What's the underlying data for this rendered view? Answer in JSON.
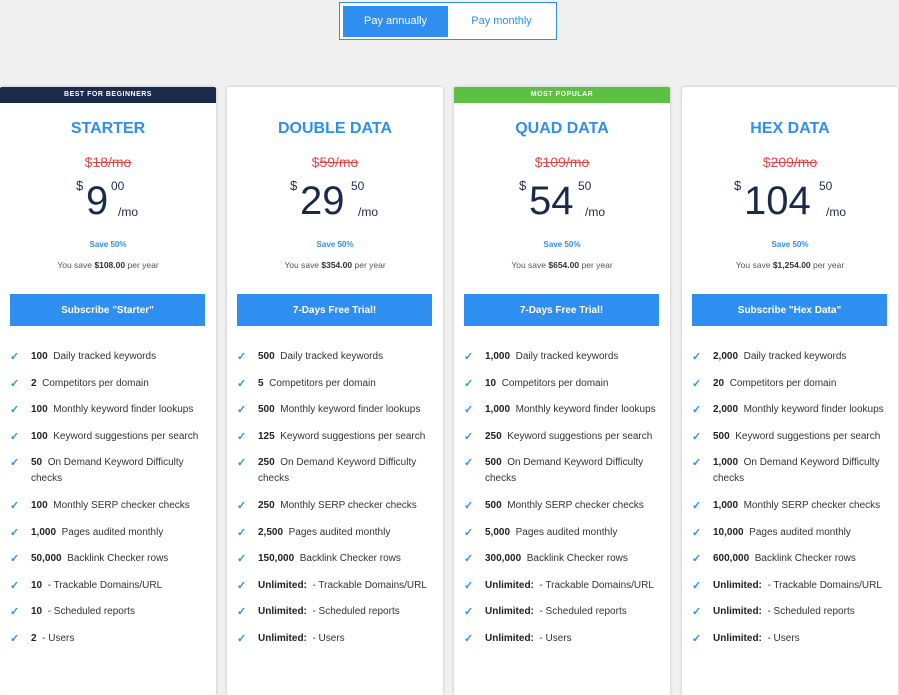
{
  "toggle": {
    "annual": "Pay annually",
    "monthly": "Pay monthly"
  },
  "plans": [
    {
      "banner": "BEST FOR BEGINNERS",
      "title": "STARTER",
      "old_price": "18/mo",
      "currency": "$",
      "price_int": "9",
      "price_cents": "00",
      "per": "/mo",
      "save_pct": "Save 50%",
      "save_label": "You save",
      "save_amount": "$108.00",
      "save_suffix": "per year",
      "cta": "Subscribe \"Starter\"",
      "features": [
        {
          "value": "100",
          "label": "Daily tracked keywords"
        },
        {
          "value": "2",
          "label": "Competitors per domain"
        },
        {
          "value": "100",
          "label": "Monthly keyword finder lookups"
        },
        {
          "value": "100",
          "label": "Keyword suggestions per search"
        },
        {
          "value": "50",
          "label": "On Demand Keyword Difficulty checks"
        },
        {
          "value": "100",
          "label": "Monthly SERP checker checks"
        },
        {
          "value": "1,000",
          "label": "Pages audited monthly"
        },
        {
          "value": "50,000",
          "label": "Backlink Checker rows"
        },
        {
          "value": "10",
          "label": "- Trackable Domains/URL"
        },
        {
          "value": "10",
          "label": "- Scheduled reports"
        },
        {
          "value": "2",
          "label": "- Users"
        }
      ]
    },
    {
      "banner": "",
      "title": "DOUBLE DATA",
      "old_price": "59/mo",
      "currency": "$",
      "price_int": "29",
      "price_cents": "50",
      "per": "/mo",
      "save_pct": "Save 50%",
      "save_label": "You save",
      "save_amount": "$354.00",
      "save_suffix": "per year",
      "cta": "7-Days Free Trial!",
      "features": [
        {
          "value": "500",
          "label": "Daily tracked keywords"
        },
        {
          "value": "5",
          "label": "Competitors per domain"
        },
        {
          "value": "500",
          "label": "Monthly keyword finder lookups"
        },
        {
          "value": "125",
          "label": "Keyword suggestions per search"
        },
        {
          "value": "250",
          "label": "On Demand Keyword Difficulty checks"
        },
        {
          "value": "250",
          "label": "Monthly SERP checker checks"
        },
        {
          "value": "2,500",
          "label": "Pages audited monthly"
        },
        {
          "value": "150,000",
          "label": "Backlink Checker rows"
        },
        {
          "value": "Unlimited:",
          "label": "- Trackable Domains/URL"
        },
        {
          "value": "Unlimited:",
          "label": "- Scheduled reports"
        },
        {
          "value": "Unlimited:",
          "label": "- Users"
        }
      ]
    },
    {
      "banner": "MOST POPULAR",
      "title": "QUAD DATA",
      "old_price": "109/mo",
      "currency": "$",
      "price_int": "54",
      "price_cents": "50",
      "per": "/mo",
      "save_pct": "Save 50%",
      "save_label": "You save",
      "save_amount": "$654.00",
      "save_suffix": "per year",
      "cta": "7-Days Free Trial!",
      "features": [
        {
          "value": "1,000",
          "label": "Daily tracked keywords"
        },
        {
          "value": "10",
          "label": "Competitors per domain"
        },
        {
          "value": "1,000",
          "label": "Monthly keyword finder lookups"
        },
        {
          "value": "250",
          "label": "Keyword suggestions per search"
        },
        {
          "value": "500",
          "label": "On Demand Keyword Difficulty checks"
        },
        {
          "value": "500",
          "label": "Monthly SERP checker checks"
        },
        {
          "value": "5,000",
          "label": "Pages audited monthly"
        },
        {
          "value": "300,000",
          "label": "Backlink Checker rows"
        },
        {
          "value": "Unlimited:",
          "label": "- Trackable Domains/URL"
        },
        {
          "value": "Unlimited:",
          "label": "- Scheduled reports"
        },
        {
          "value": "Unlimited:",
          "label": "- Users"
        }
      ]
    },
    {
      "banner": "",
      "title": "HEX DATA",
      "old_price": "209/mo",
      "currency": "$",
      "price_int": "104",
      "price_cents": "50",
      "per": "/mo",
      "save_pct": "Save 50%",
      "save_label": "You save",
      "save_amount": "$1,254.00",
      "save_suffix": "per year",
      "cta": "Subscribe \"Hex Data\"",
      "features": [
        {
          "value": "2,000",
          "label": "Daily tracked keywords"
        },
        {
          "value": "20",
          "label": "Competitors per domain"
        },
        {
          "value": "2,000",
          "label": "Monthly keyword finder lookups"
        },
        {
          "value": "500",
          "label": "Keyword suggestions per search"
        },
        {
          "value": "1,000",
          "label": "On Demand Keyword Difficulty checks"
        },
        {
          "value": "1,000",
          "label": "Monthly SERP checker checks"
        },
        {
          "value": "10,000",
          "label": "Pages audited monthly"
        },
        {
          "value": "600,000",
          "label": "Backlink Checker rows"
        },
        {
          "value": "Unlimited:",
          "label": "- Trackable Domains/URL"
        },
        {
          "value": "Unlimited:",
          "label": "- Scheduled reports"
        },
        {
          "value": "Unlimited:",
          "label": "- Users"
        }
      ]
    }
  ],
  "colors": {
    "accent": "#2f8ff0",
    "old_price": "#e04848",
    "banner_dark": "#1c2a4b",
    "banner_green": "#5cc043",
    "text_dark": "#1a2b4a"
  },
  "icons": {
    "check": "check-icon"
  }
}
